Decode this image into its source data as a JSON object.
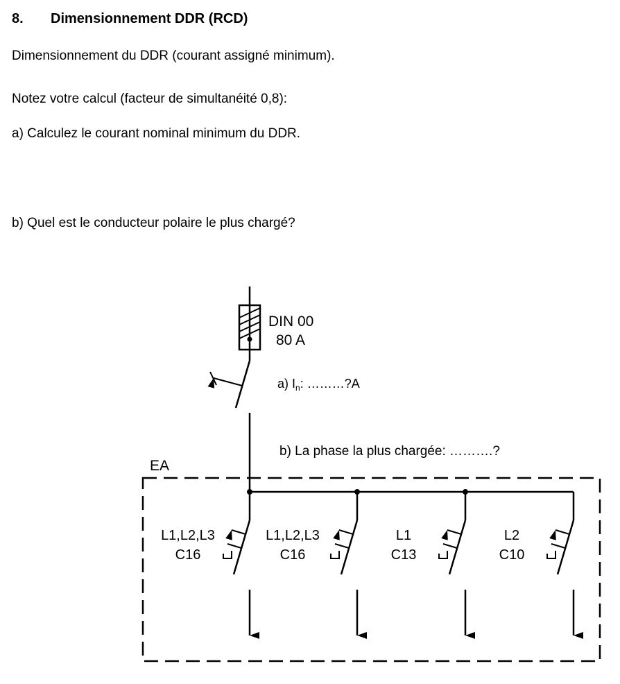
{
  "heading": {
    "number": "8.",
    "title": "Dimensionnement DDR (RCD)"
  },
  "paragraphs": {
    "intro": "Dimensionnement du DDR (courant assigné minimum).",
    "note": "Notez votre calcul (facteur de simultanéité 0,8):",
    "question_a": "a) Calculez le courant nominal minimum du DDR.",
    "question_b": "b) Quel est le conducteur polaire le plus chargé?"
  },
  "diagram": {
    "fuse_label_1": "DIN 00",
    "fuse_label_2": "80 A",
    "answer_a_prefix": "a) I",
    "answer_a_sub": "n",
    "answer_a_suffix": ": ………?A",
    "answer_b": "b) La phase la plus chargée: ……….?",
    "enclosure_label": "EA",
    "breakers": [
      {
        "phases": "L1,L2,L3",
        "rating": "C16"
      },
      {
        "phases": "L1,L2,L3",
        "rating": "C16"
      },
      {
        "phases": "L1",
        "rating": "C13"
      },
      {
        "phases": "L2",
        "rating": "C10"
      }
    ]
  }
}
